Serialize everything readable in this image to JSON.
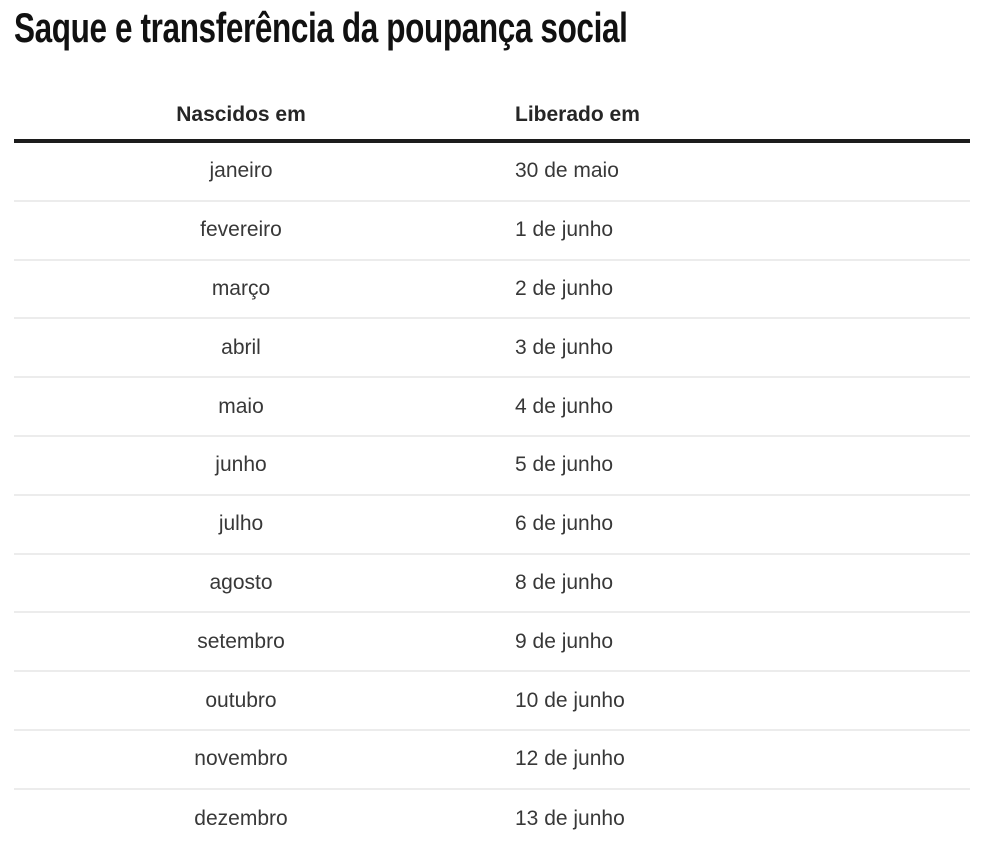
{
  "chart_data": {
    "type": "table",
    "title": "Saque e transferência da poupança social",
    "columns": [
      "Nascidos em",
      "Liberado em"
    ],
    "rows": [
      [
        "janeiro",
        "30 de maio"
      ],
      [
        "fevereiro",
        "1 de junho"
      ],
      [
        "março",
        "2 de junho"
      ],
      [
        "abril",
        "3 de junho"
      ],
      [
        "maio",
        "4 de junho"
      ],
      [
        "junho",
        "5 de junho"
      ],
      [
        "julho",
        "6 de junho"
      ],
      [
        "agosto",
        "8 de junho"
      ],
      [
        "setembro",
        "9 de junho"
      ],
      [
        "outubro",
        "10 de junho"
      ],
      [
        "novembro",
        "12 de junho"
      ],
      [
        "dezembro",
        "13 de junho"
      ]
    ]
  },
  "colors": {
    "title_color": "#111111",
    "header_text_color": "#262626",
    "body_text_color": "#383838",
    "divider_color": "#ececec",
    "rule_color": "#1c1c1c",
    "background_color": "#ffffff"
  }
}
